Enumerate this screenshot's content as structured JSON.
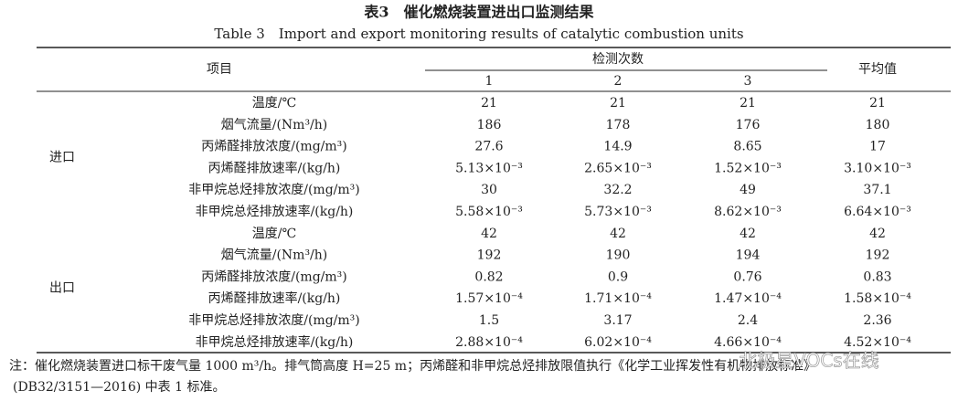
{
  "title_cn": "表3　催化燃烧装置进出口监测结果",
  "title_en": "Table 3　Import and export monitoring results of catalytic combustion units",
  "table": {
    "header": {
      "item": "项目",
      "tests": "检测次数",
      "runs": [
        "1",
        "2",
        "3"
      ],
      "average": "平均值"
    },
    "groups": [
      {
        "name": "进口",
        "rows": [
          [
            "温度/℃",
            "21",
            "21",
            "21",
            "21"
          ],
          [
            "烟气流量/(Nm³/h)",
            "186",
            "178",
            "176",
            "180"
          ],
          [
            "丙烯醛排放浓度/(mg/m³)",
            "27.6",
            "14.9",
            "8.65",
            "17"
          ],
          [
            "丙烯醛排放速率/(kg/h)",
            "5.13×10⁻³",
            "2.65×10⁻³",
            "1.52×10⁻³",
            "3.10×10⁻³"
          ],
          [
            "非甲烷总烃排放浓度/(mg/m³)",
            "30",
            "32.2",
            "49",
            "37.1"
          ],
          [
            "非甲烷总烃排放速率/(kg/h)",
            "5.58×10⁻³",
            "5.73×10⁻³",
            "8.62×10⁻³",
            "6.64×10⁻³"
          ]
        ]
      },
      {
        "name": "出口",
        "rows": [
          [
            "温度/℃",
            "42",
            "42",
            "42",
            "42"
          ],
          [
            "烟气流量/(Nm³/h)",
            "192",
            "190",
            "194",
            "192"
          ],
          [
            "丙烯醛排放浓度/(mg/m³)",
            "0.82",
            "0.9",
            "0.76",
            "0.83"
          ],
          [
            "丙烯醛排放速率/(kg/h)",
            "1.57×10⁻⁴",
            "1.71×10⁻⁴",
            "1.47×10⁻⁴",
            "1.58×10⁻⁴"
          ],
          [
            "非甲烷总烃排放浓度/(mg/m³)",
            "1.5",
            "3.17",
            "2.4",
            "2.36"
          ],
          [
            "非甲烷总烃排放速率/(kg/h)",
            "2.88×10⁻⁴",
            "6.02×10⁻⁴",
            "4.66×10⁻⁴",
            "4.52×10⁻⁴"
          ]
        ]
      }
    ]
  },
  "note": [
    "注：催化燃烧装置进口标干废气量 1000 m³/h。排气筒高度 H=25 m；丙烯醛和非甲烷总烃排放限值执行《化学工业挥发性有机物排放标准》",
    "(DB32/3151—2016) 中表 1 标准。"
  ],
  "watermark": "北极星VOCs在线"
}
